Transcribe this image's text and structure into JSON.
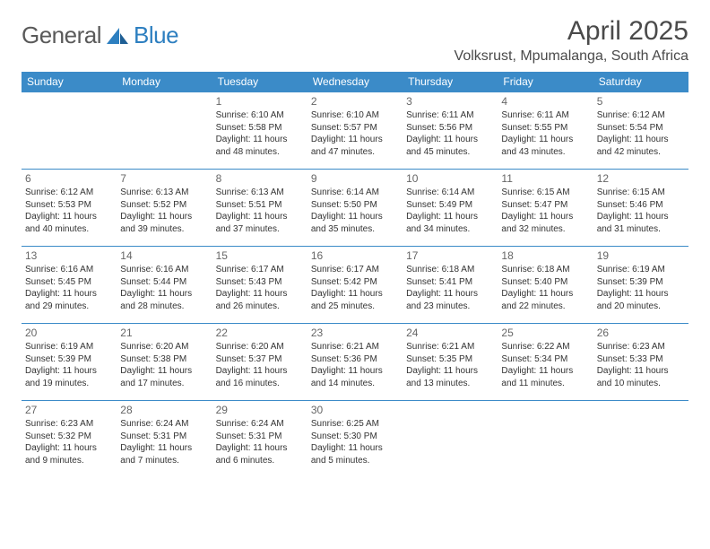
{
  "logo": {
    "text1": "General",
    "text2": "Blue"
  },
  "title": "April 2025",
  "location": "Volksrust, Mpumalanga, South Africa",
  "colors": {
    "header_bg": "#3b8bc8",
    "header_text": "#ffffff",
    "border": "#3b8bc8",
    "logo_gray": "#5a5a5a",
    "logo_blue": "#2d7fc0",
    "title_color": "#4a4a4a"
  },
  "daysOfWeek": [
    "Sunday",
    "Monday",
    "Tuesday",
    "Wednesday",
    "Thursday",
    "Friday",
    "Saturday"
  ],
  "weeks": [
    [
      null,
      null,
      {
        "n": "1",
        "sr": "Sunrise: 6:10 AM",
        "ss": "Sunset: 5:58 PM",
        "dl": "Daylight: 11 hours and 48 minutes."
      },
      {
        "n": "2",
        "sr": "Sunrise: 6:10 AM",
        "ss": "Sunset: 5:57 PM",
        "dl": "Daylight: 11 hours and 47 minutes."
      },
      {
        "n": "3",
        "sr": "Sunrise: 6:11 AM",
        "ss": "Sunset: 5:56 PM",
        "dl": "Daylight: 11 hours and 45 minutes."
      },
      {
        "n": "4",
        "sr": "Sunrise: 6:11 AM",
        "ss": "Sunset: 5:55 PM",
        "dl": "Daylight: 11 hours and 43 minutes."
      },
      {
        "n": "5",
        "sr": "Sunrise: 6:12 AM",
        "ss": "Sunset: 5:54 PM",
        "dl": "Daylight: 11 hours and 42 minutes."
      }
    ],
    [
      {
        "n": "6",
        "sr": "Sunrise: 6:12 AM",
        "ss": "Sunset: 5:53 PM",
        "dl": "Daylight: 11 hours and 40 minutes."
      },
      {
        "n": "7",
        "sr": "Sunrise: 6:13 AM",
        "ss": "Sunset: 5:52 PM",
        "dl": "Daylight: 11 hours and 39 minutes."
      },
      {
        "n": "8",
        "sr": "Sunrise: 6:13 AM",
        "ss": "Sunset: 5:51 PM",
        "dl": "Daylight: 11 hours and 37 minutes."
      },
      {
        "n": "9",
        "sr": "Sunrise: 6:14 AM",
        "ss": "Sunset: 5:50 PM",
        "dl": "Daylight: 11 hours and 35 minutes."
      },
      {
        "n": "10",
        "sr": "Sunrise: 6:14 AM",
        "ss": "Sunset: 5:49 PM",
        "dl": "Daylight: 11 hours and 34 minutes."
      },
      {
        "n": "11",
        "sr": "Sunrise: 6:15 AM",
        "ss": "Sunset: 5:47 PM",
        "dl": "Daylight: 11 hours and 32 minutes."
      },
      {
        "n": "12",
        "sr": "Sunrise: 6:15 AM",
        "ss": "Sunset: 5:46 PM",
        "dl": "Daylight: 11 hours and 31 minutes."
      }
    ],
    [
      {
        "n": "13",
        "sr": "Sunrise: 6:16 AM",
        "ss": "Sunset: 5:45 PM",
        "dl": "Daylight: 11 hours and 29 minutes."
      },
      {
        "n": "14",
        "sr": "Sunrise: 6:16 AM",
        "ss": "Sunset: 5:44 PM",
        "dl": "Daylight: 11 hours and 28 minutes."
      },
      {
        "n": "15",
        "sr": "Sunrise: 6:17 AM",
        "ss": "Sunset: 5:43 PM",
        "dl": "Daylight: 11 hours and 26 minutes."
      },
      {
        "n": "16",
        "sr": "Sunrise: 6:17 AM",
        "ss": "Sunset: 5:42 PM",
        "dl": "Daylight: 11 hours and 25 minutes."
      },
      {
        "n": "17",
        "sr": "Sunrise: 6:18 AM",
        "ss": "Sunset: 5:41 PM",
        "dl": "Daylight: 11 hours and 23 minutes."
      },
      {
        "n": "18",
        "sr": "Sunrise: 6:18 AM",
        "ss": "Sunset: 5:40 PM",
        "dl": "Daylight: 11 hours and 22 minutes."
      },
      {
        "n": "19",
        "sr": "Sunrise: 6:19 AM",
        "ss": "Sunset: 5:39 PM",
        "dl": "Daylight: 11 hours and 20 minutes."
      }
    ],
    [
      {
        "n": "20",
        "sr": "Sunrise: 6:19 AM",
        "ss": "Sunset: 5:39 PM",
        "dl": "Daylight: 11 hours and 19 minutes."
      },
      {
        "n": "21",
        "sr": "Sunrise: 6:20 AM",
        "ss": "Sunset: 5:38 PM",
        "dl": "Daylight: 11 hours and 17 minutes."
      },
      {
        "n": "22",
        "sr": "Sunrise: 6:20 AM",
        "ss": "Sunset: 5:37 PM",
        "dl": "Daylight: 11 hours and 16 minutes."
      },
      {
        "n": "23",
        "sr": "Sunrise: 6:21 AM",
        "ss": "Sunset: 5:36 PM",
        "dl": "Daylight: 11 hours and 14 minutes."
      },
      {
        "n": "24",
        "sr": "Sunrise: 6:21 AM",
        "ss": "Sunset: 5:35 PM",
        "dl": "Daylight: 11 hours and 13 minutes."
      },
      {
        "n": "25",
        "sr": "Sunrise: 6:22 AM",
        "ss": "Sunset: 5:34 PM",
        "dl": "Daylight: 11 hours and 11 minutes."
      },
      {
        "n": "26",
        "sr": "Sunrise: 6:23 AM",
        "ss": "Sunset: 5:33 PM",
        "dl": "Daylight: 11 hours and 10 minutes."
      }
    ],
    [
      {
        "n": "27",
        "sr": "Sunrise: 6:23 AM",
        "ss": "Sunset: 5:32 PM",
        "dl": "Daylight: 11 hours and 9 minutes."
      },
      {
        "n": "28",
        "sr": "Sunrise: 6:24 AM",
        "ss": "Sunset: 5:31 PM",
        "dl": "Daylight: 11 hours and 7 minutes."
      },
      {
        "n": "29",
        "sr": "Sunrise: 6:24 AM",
        "ss": "Sunset: 5:31 PM",
        "dl": "Daylight: 11 hours and 6 minutes."
      },
      {
        "n": "30",
        "sr": "Sunrise: 6:25 AM",
        "ss": "Sunset: 5:30 PM",
        "dl": "Daylight: 11 hours and 5 minutes."
      },
      null,
      null,
      null
    ]
  ]
}
